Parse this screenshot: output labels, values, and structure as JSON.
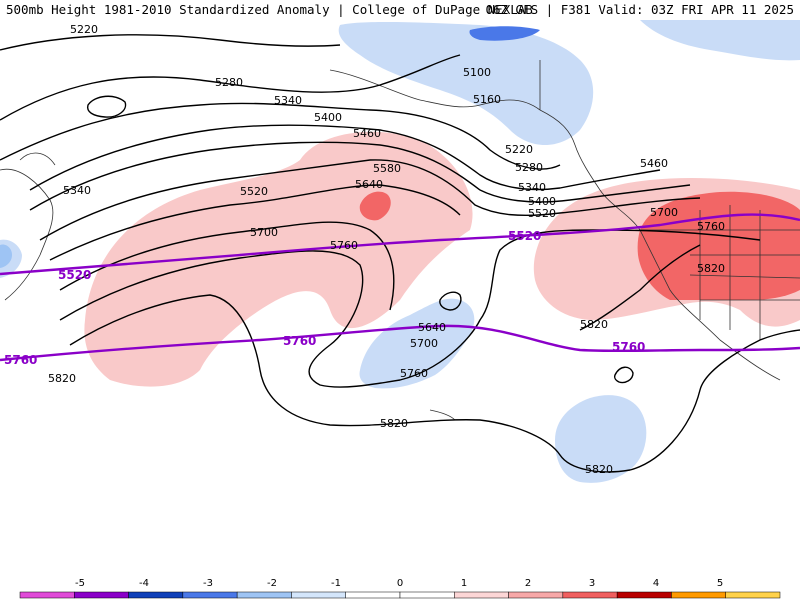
{
  "header": {
    "left_title": "500mb Height 1981-2010 Standardized Anomaly | College of DuPage NEXLAB",
    "right_title": "06Z GFS | F381 Valid: 03Z FRI APR 11 2025"
  },
  "contours": {
    "black_labels": [
      {
        "id": "c5220a",
        "text": "5220"
      },
      {
        "id": "c5280a",
        "text": "5280"
      },
      {
        "id": "c5340a",
        "text": "5340"
      },
      {
        "id": "c5400a",
        "text": "5400"
      },
      {
        "id": "c5460a",
        "text": "5460"
      },
      {
        "id": "c5340b",
        "text": "5340"
      },
      {
        "id": "c5520a",
        "text": "5520"
      },
      {
        "id": "c5580a",
        "text": "5580"
      },
      {
        "id": "c5640a",
        "text": "5640"
      },
      {
        "id": "c5700a",
        "text": "5700"
      },
      {
        "id": "c5760a",
        "text": "5760"
      },
      {
        "id": "c5100",
        "text": "5100"
      },
      {
        "id": "c5160",
        "text": "5160"
      },
      {
        "id": "c5220b",
        "text": "5220"
      },
      {
        "id": "c5280b",
        "text": "5280"
      },
      {
        "id": "c5340c",
        "text": "5340"
      },
      {
        "id": "c5400b",
        "text": "5400"
      },
      {
        "id": "c5460b",
        "text": "5460"
      },
      {
        "id": "c5520b",
        "text": "5520"
      },
      {
        "id": "c5700b",
        "text": "5700"
      },
      {
        "id": "c5760b",
        "text": "5760"
      },
      {
        "id": "c5820a",
        "text": "5820"
      },
      {
        "id": "c5820b",
        "text": "5820"
      },
      {
        "id": "c5640b",
        "text": "5640"
      },
      {
        "id": "c5700c",
        "text": "5700"
      },
      {
        "id": "c5760c",
        "text": "5760"
      },
      {
        "id": "c5820c",
        "text": "5820"
      },
      {
        "id": "c5820d",
        "text": "5820"
      },
      {
        "id": "c5820e",
        "text": "5820"
      }
    ],
    "climo_labels": [
      {
        "id": "p5520a",
        "text": "5520"
      },
      {
        "id": "p5520b",
        "text": "5520"
      },
      {
        "id": "p5760a",
        "text": "5760"
      },
      {
        "id": "p5760b",
        "text": "5760"
      },
      {
        "id": "p5760c",
        "text": "5760"
      }
    ]
  },
  "legend": {
    "ticks": [
      "-5",
      "-4",
      "-3",
      "-2",
      "-1",
      "0",
      "1",
      "2",
      "3",
      "4",
      "5"
    ],
    "colors": [
      "#e04ad8",
      "#8a00c8",
      "#1040b8",
      "#4a78e8",
      "#9ec4f4",
      "#d4e6fb",
      "#ffffff",
      "#ffffff",
      "#fcd6d6",
      "#f7a8a8",
      "#f06060",
      "#b80000",
      "#ff9a00",
      "#ffd24a"
    ],
    "negative_color": "#c9dcf7",
    "positive_color": "#f9c9c9",
    "strong_positive_color": "#f26666",
    "climo_line_color": "#8a00c8"
  }
}
